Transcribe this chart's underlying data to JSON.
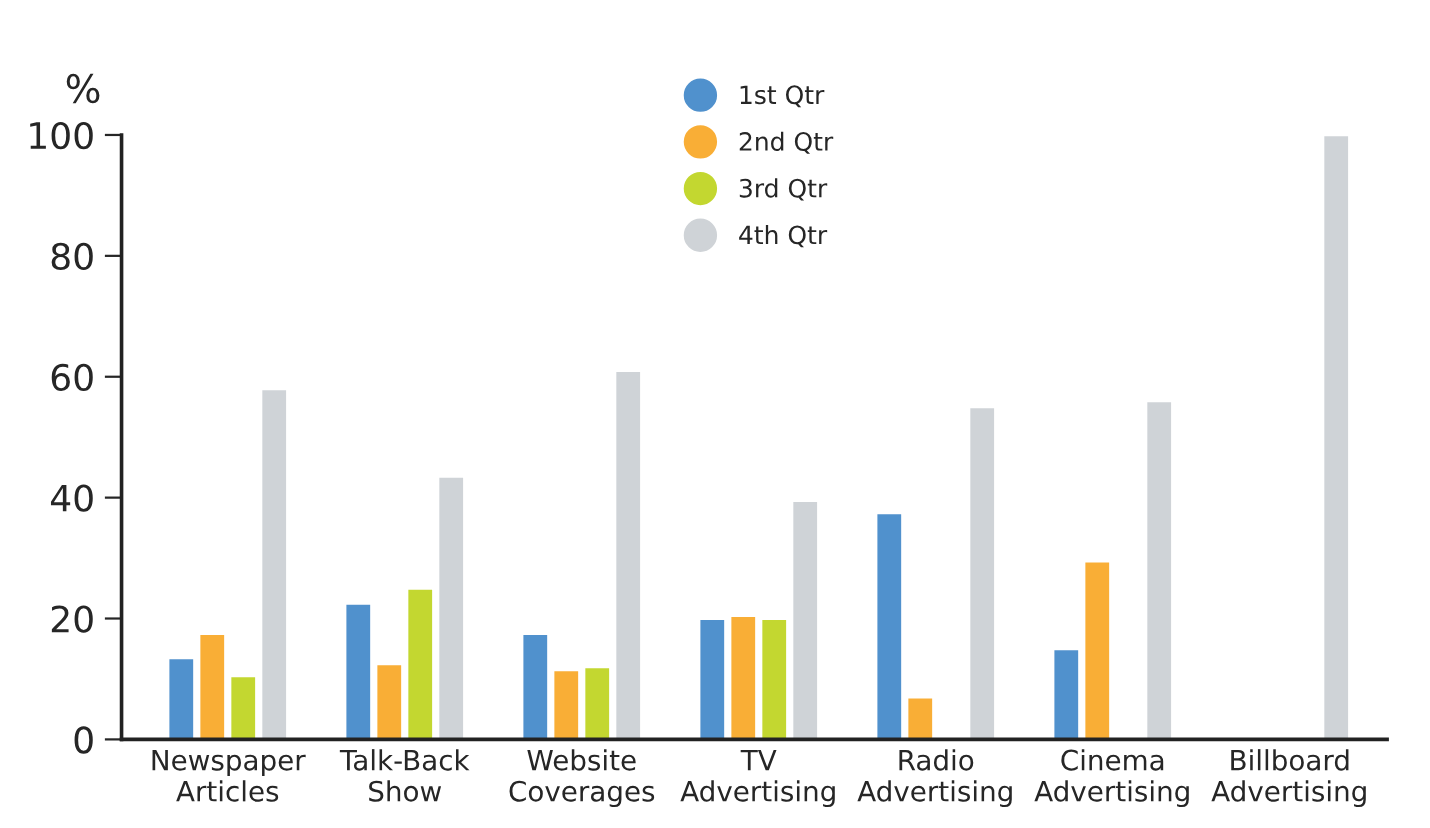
{
  "chart_data": {
    "type": "bar",
    "ylabel": "%",
    "categories": [
      "Newspaper\nArticles",
      "Talk-Back\nShow",
      "Website\nCoverages",
      "TV\nAdvertising",
      "Radio\nAdvertising",
      "Cinema\nAdvertising",
      "Billboard\nAdvertising"
    ],
    "series": [
      {
        "name": "1st Qtr",
        "color": "#5091cd",
        "values": [
          13.5,
          22.5,
          17.5,
          20,
          37.5,
          15,
          null
        ]
      },
      {
        "name": "2nd Qtr",
        "color": "#f9ae36",
        "values": [
          17.5,
          12.5,
          11.5,
          20.5,
          7,
          29.5,
          null
        ]
      },
      {
        "name": "3rd Qtr",
        "color": "#c3d730",
        "values": [
          10.5,
          25,
          12,
          20,
          null,
          null,
          null
        ]
      },
      {
        "name": "4th Qtr",
        "color": "#cfd3d7",
        "values": [
          58,
          43.5,
          61,
          39.5,
          55,
          56,
          100
        ]
      }
    ],
    "ylim": [
      0,
      100
    ],
    "yticks": [
      0,
      20,
      40,
      60,
      80,
      100
    ],
    "grid": false,
    "legend": "top"
  }
}
